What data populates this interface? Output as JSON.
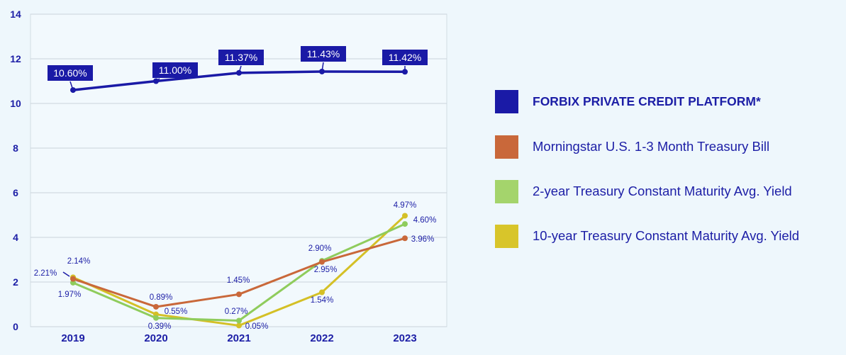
{
  "chart_data": {
    "type": "line",
    "categories": [
      "2019",
      "2020",
      "2021",
      "2022",
      "2023"
    ],
    "ylim": [
      0,
      14
    ],
    "yticks": [
      0,
      2,
      4,
      6,
      8,
      10,
      12,
      14
    ],
    "grid": true,
    "legend_position": "right",
    "series": [
      {
        "name": "FORBIX PRIVATE CREDIT PLATFORM*",
        "color": "#1a1aa6",
        "values": [
          10.6,
          11.0,
          11.37,
          11.43,
          11.42
        ],
        "labels": [
          "10.60%",
          "11.00%",
          "11.37%",
          "11.43%",
          "11.42%"
        ]
      },
      {
        "name": "Morningstar U.S. 1-3 Month Treasury Bill",
        "color": "#c9683a",
        "values": [
          2.14,
          0.89,
          1.45,
          2.9,
          3.96
        ],
        "labels": [
          "2.14%",
          "0.89%",
          "1.45%",
          "2.90%",
          "3.96%"
        ]
      },
      {
        "name": "2-year Treasury Constant Maturity Avg. Yield",
        "color": "#8fcc5c",
        "values": [
          1.97,
          0.39,
          0.27,
          2.95,
          4.6
        ],
        "labels": [
          "1.97%",
          "0.39%",
          "0.27%",
          "2.95%",
          "4.60%"
        ]
      },
      {
        "name": "10-year Treasury Constant Maturity Avg. Yield",
        "color": "#d4c026",
        "values": [
          2.21,
          0.55,
          0.05,
          1.54,
          4.97
        ],
        "labels": [
          "2.21%",
          "0.55%",
          "0.05%",
          "1.54%",
          "4.97%"
        ]
      }
    ]
  },
  "legend": {
    "items": [
      {
        "label": "FORBIX PRIVATE CREDIT PLATFORM*",
        "color": "#1a1aa6"
      },
      {
        "label": "Morningstar U.S. 1-3 Month Treasury Bill",
        "color": "#c9683a"
      },
      {
        "label": "2-year Treasury Constant Maturity Avg. Yield",
        "color": "#8fcc5c"
      },
      {
        "label": "10-year Treasury Constant Maturity Avg. Yield",
        "color": "#d4c026"
      }
    ]
  }
}
